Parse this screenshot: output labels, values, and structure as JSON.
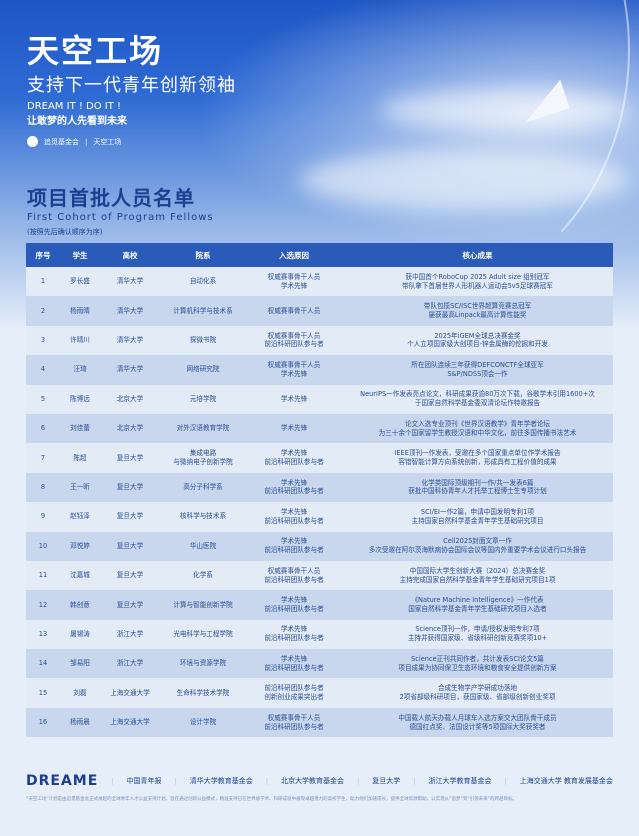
{
  "hero": {
    "title": "天空工场",
    "subtitle": "支持下一代青年创新领袖",
    "slogan_en": "DREAM IT ! DO IT !",
    "slogan_cn": "让敢梦的人先看到未来",
    "logo1": "追觅基金会",
    "logo2": "天空工场"
  },
  "section": {
    "title": "项目首批人员名单",
    "title_en": "First Cohort of Program Fellows",
    "note": "(按照先后确认顺序为序)"
  },
  "table": {
    "headers": [
      "序号",
      "学生",
      "高校",
      "院系",
      "入选原因",
      "核心成果"
    ],
    "rows": [
      [
        "1",
        "罗长盛",
        "清华大学",
        "自动化系",
        "权威赛事骨干人员\n学术先锋",
        "获中国首个RoboCup 2025 Adult size 组别冠军\n带队拿下首届世界人形机器人运动会5v5足球赛冠军"
      ],
      [
        "2",
        "杨雨晴",
        "清华大学",
        "计算机科学与技术系",
        "权威赛事骨干人员",
        "带队包揽SC/ISC世界超算竞赛总冠军\n屡获最高Linpack最高计算性能奖"
      ],
      [
        "3",
        "许晴川",
        "清华大学",
        "探微书院",
        "权威赛事骨干人员\n前沿科研团队参与者",
        "2025年iGEM全球总决赛金奖\n个人立项国家级大创项目-锌金属酶的挖掘和开发"
      ],
      [
        "4",
        "汪琦",
        "清华大学",
        "网络研究院",
        "权威赛事骨干人员\n学术先锋",
        "所在团队连续三年获得DEFCONCTF全球亚军\nS&P/NDSS顶会一作"
      ],
      [
        "5",
        "陈博远",
        "北京大学",
        "元培学院",
        "学术先锋",
        "NeurIPS一作发表亮点论文，科研成果获逾80万次下载，谷歌学术引用1600+次\n于国家自然科学基金委双清论坛作特邀报告"
      ],
      [
        "6",
        "刘佳蕾",
        "北京大学",
        "对外汉语教育学院",
        "学术先锋",
        "论文入选专业顶刊《世界汉语教学》青年学者论坛\n为三十余个国家留学生教授汉语和中华文化，前往多国传播书法艺术"
      ],
      [
        "7",
        "陈超",
        "复旦大学",
        "集成电路\n与微纳电子创新学院",
        "学术先锋\n前沿科研团队参与者",
        "IEEE顶刊一作发表，受邀在多个国家重点单位作学术报告\n容错智能计算方向系统创新，形成具有工程价值的成果"
      ],
      [
        "8",
        "王一昕",
        "复旦大学",
        "高分子科学系",
        "学术先锋\n前沿科研团队参与者",
        "化学类国际顶级期刊一作/共一发表6篇\n获批中国科协青年人才托举工程博士生专项计划"
      ],
      [
        "9",
        "赵钰泽",
        "复旦大学",
        "核科学与技术系",
        "学术先锋\n前沿科研团队参与者",
        "SCI/EI一作2篇，申请中国发明专利1项\n主持国家自然科学基金青年学生基础研究项目"
      ],
      [
        "10",
        "邓悦婷",
        "复旦大学",
        "华山医院",
        "学术先锋\n前沿科研团队参与者",
        "Cell2025封面文章一作\n多次受邀在阿尔茨海默病协会国际会议等国内外重要学术会议进行口头报告"
      ],
      [
        "11",
        "沈嘉城",
        "复旦大学",
        "化学系",
        "权威赛事骨干人员\n前沿科研团队参与者",
        "中国国际大学生创新大赛（2024）总决赛金奖\n主持完成国家自然科学基金青年学生基础研究项目1项"
      ],
      [
        "12",
        "韩创意",
        "复旦大学",
        "计算与智能创新学院",
        "学术先锋\n前沿科研团队参与者",
        "《Nature Machine Intelligence》一作代表\n国家自然科学基金青年学生基础研究项目入选者"
      ],
      [
        "13",
        "屠锡涛",
        "浙江大学",
        "光电科学与工程学院",
        "学术先锋\n前沿科研团队参与者",
        "Science顶刊一作，申请/授权发明专利7项\n主持并获得国家级、省级科研创新竞赛奖项10+"
      ],
      [
        "14",
        "邹易阳",
        "浙江大学",
        "环境与资源学院",
        "学术先锋\n前沿科研团队参与者",
        "Science正刊共同作者，共计发表SCI论文5篇\n项目成果为协同保卫生态环境和粮食安全提供创新方案"
      ],
      [
        "15",
        "刘磊",
        "上海交通大学",
        "生命科学技术学院",
        "前沿科研团队参与者\n创新创业成果突出者",
        "合成生物学产学研成功落地\n2项省部级科研项目，获国家级、省部级创新创业奖项"
      ],
      [
        "16",
        "杨雨晨",
        "上海交通大学",
        "设计学院",
        "权威赛事骨干人员\n前沿科研团队参与者",
        "中国载人航天办载人月球车入选方案交大团队骨干成员\n德国红点奖、法国设计奖等5项国际大奖获奖者"
      ]
    ]
  },
  "footer": {
    "logos": [
      "DREAME",
      "中国青年报",
      "清华大学教育基金会",
      "北京大学教育基金会",
      "复旦大学",
      "浙江大学教育基金会",
      "上海交通大学 教育发展基金会"
    ],
    "text": "“天空工场”计划是由追觅基金会正式发起的全球青年人才公益支持计划，旨在通过创新公益模式，精准支持已在世界级学术、科研成就中展现卓越潜力的高校学生，助力他们加速成长，提供全球资源帮助，以实现从“追梦”到“引领未来”的跨越目标。"
  }
}
